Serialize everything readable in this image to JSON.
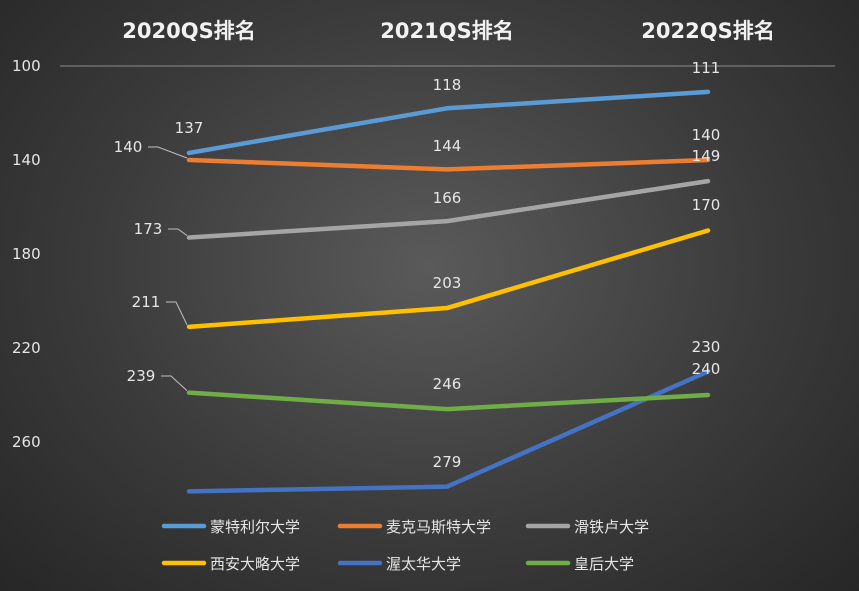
{
  "chart_data": {
    "type": "line",
    "categories": [
      "2020QS排名",
      "2021QS排名",
      "2022QS排名"
    ],
    "y_axis": {
      "ticks": [
        "100",
        "140",
        "180",
        "220",
        "260"
      ],
      "tick_values": [
        100,
        140,
        180,
        220,
        260
      ],
      "reversed": true,
      "range": [
        100,
        280
      ]
    },
    "grid": {
      "horizontal": false,
      "top_axis_line": true
    },
    "legend": {
      "position": "bottom"
    },
    "series": [
      {
        "name": "蒙特利尔大学",
        "color": "#5b9bd5",
        "values": [
          137,
          118,
          111
        ],
        "labels": [
          "137",
          "118",
          "111"
        ]
      },
      {
        "name": "麦克马斯特大学",
        "color": "#ed7d31",
        "values": [
          140,
          144,
          140
        ],
        "labels": [
          "140",
          "144",
          "140"
        ]
      },
      {
        "name": "滑铁卢大学",
        "color": "#a5a5a5",
        "values": [
          173,
          166,
          149
        ],
        "labels": [
          "173",
          "166",
          "149"
        ]
      },
      {
        "name": "西安大略大学",
        "color": "#ffc000",
        "values": [
          211,
          203,
          170
        ],
        "labels": [
          "211",
          "203",
          "170"
        ]
      },
      {
        "name": "渥太华大学",
        "color": "#4472c4",
        "values": [
          281,
          279,
          230
        ],
        "labels": [
          "",
          "279",
          "230"
        ]
      },
      {
        "name": "皇后大学",
        "color": "#70ad47",
        "values": [
          239,
          246,
          240
        ],
        "labels": [
          "239",
          "246",
          "240"
        ]
      }
    ]
  }
}
